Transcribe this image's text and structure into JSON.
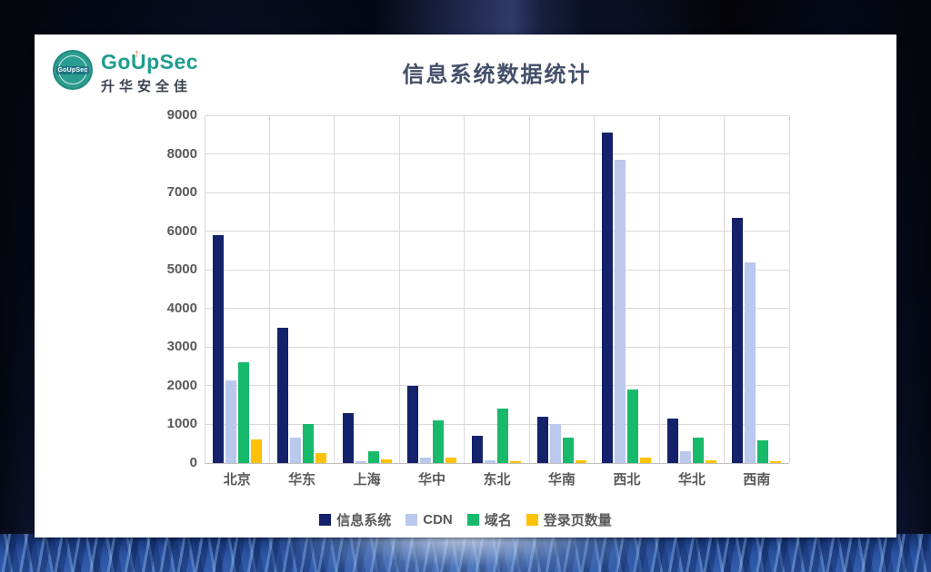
{
  "logo": {
    "badge_text": "GoUpSec",
    "brand_prefix": "Go",
    "brand_u": "U",
    "brand_suffix": "pSec",
    "subtitle": "升华安全佳"
  },
  "icons": {
    "brand_arrow": "↑"
  },
  "chart_data": {
    "type": "bar",
    "title": "信息系统数据统计",
    "categories": [
      "北京",
      "华东",
      "上海",
      "华中",
      "东北",
      "华南",
      "西北",
      "华北",
      "西南"
    ],
    "series": [
      {
        "name": "信息系统",
        "color": "#14216b",
        "values": [
          5900,
          3500,
          1300,
          2000,
          700,
          1200,
          8550,
          1150,
          6350
        ]
      },
      {
        "name": "CDN",
        "color": "#b9c8eb",
        "values": [
          2150,
          650,
          50,
          150,
          80,
          1000,
          7850,
          300,
          5200
        ]
      },
      {
        "name": "域名",
        "color": "#17b96b",
        "values": [
          2600,
          1000,
          300,
          1100,
          1400,
          650,
          1900,
          650,
          580
        ]
      },
      {
        "name": "登录页数量",
        "color": "#fec103",
        "values": [
          600,
          250,
          90,
          150,
          50,
          60,
          130,
          60,
          50
        ]
      }
    ],
    "ylim": [
      0,
      9000
    ],
    "ytick_step": 1000,
    "grid": true,
    "legend_position": "bottom"
  },
  "style_colors": {
    "grid": "#d9d9d9",
    "axis": "#bfbfbf",
    "tick_text": "#595959",
    "title_text": "#44506a",
    "card_bg": "#ffffff",
    "brand_teal": "#1f9d8f",
    "brand_orange": "#e87a2a"
  }
}
